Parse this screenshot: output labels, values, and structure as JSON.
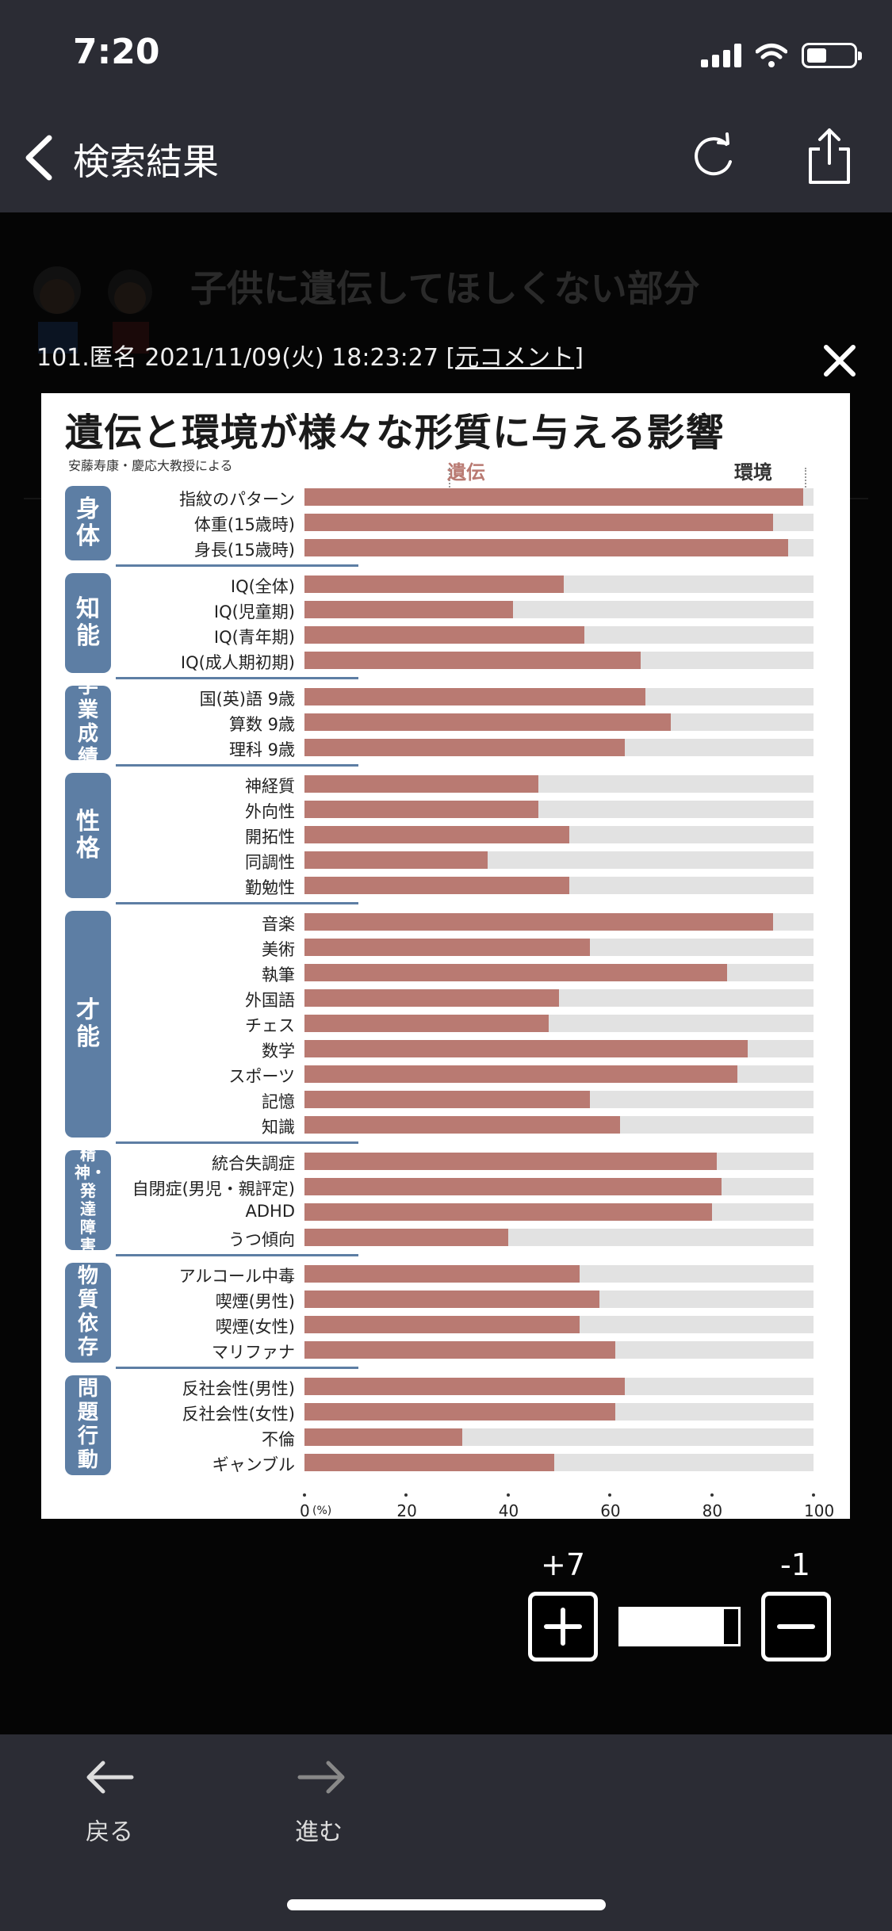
{
  "status": {
    "time": "7:20"
  },
  "nav": {
    "title": "検索結果"
  },
  "background": {
    "title": "子供に遺伝してほしくない部分"
  },
  "comment": {
    "meta": "101.匿名 2021/11/09(火) 18:23:27 ",
    "link_open": "[",
    "link": "元コメント",
    "link_close": "]"
  },
  "chart_data": {
    "type": "bar",
    "title": "遺伝と環境が様々な形質に与える影響",
    "subtitle": "安藤寿康・慶応大教授による",
    "legend": [
      "遺伝",
      "環境"
    ],
    "xlim": [
      0,
      100
    ],
    "x_ticks": [
      "0",
      "20",
      "40",
      "60",
      "80",
      "100"
    ],
    "x_unit": "(%)",
    "groups": [
      {
        "name": "身体",
        "items": [
          {
            "label": "指紋のパターン",
            "value": 98
          },
          {
            "label": "体重(15歳時)",
            "value": 92
          },
          {
            "label": "身長(15歳時)",
            "value": 95
          }
        ]
      },
      {
        "name": "知能",
        "items": [
          {
            "label": "IQ(全体)",
            "value": 51
          },
          {
            "label": "IQ(児童期)",
            "value": 41
          },
          {
            "label": "IQ(青年期)",
            "value": 55
          },
          {
            "label": "IQ(成人期初期)",
            "value": 66
          }
        ]
      },
      {
        "name": "学業成績",
        "items": [
          {
            "label": "国(英)語 9歳",
            "value": 67
          },
          {
            "label": "算数 9歳",
            "value": 72
          },
          {
            "label": "理科 9歳",
            "value": 63
          }
        ]
      },
      {
        "name": "性格",
        "items": [
          {
            "label": "神経質",
            "value": 46
          },
          {
            "label": "外向性",
            "value": 46
          },
          {
            "label": "開拓性",
            "value": 52
          },
          {
            "label": "同調性",
            "value": 36
          },
          {
            "label": "勤勉性",
            "value": 52
          }
        ]
      },
      {
        "name": "才能",
        "items": [
          {
            "label": "音楽",
            "value": 92
          },
          {
            "label": "美術",
            "value": 56
          },
          {
            "label": "執筆",
            "value": 83
          },
          {
            "label": "外国語",
            "value": 50
          },
          {
            "label": "チェス",
            "value": 48
          },
          {
            "label": "数学",
            "value": 87
          },
          {
            "label": "スポーツ",
            "value": 85
          },
          {
            "label": "記憶",
            "value": 56
          },
          {
            "label": "知識",
            "value": 62
          }
        ]
      },
      {
        "name": "精神・発達障害",
        "items": [
          {
            "label": "統合失調症",
            "value": 81
          },
          {
            "label": "自閉症(男児・親評定)",
            "value": 82
          },
          {
            "label": "ADHD",
            "value": 80
          },
          {
            "label": "うつ傾向",
            "value": 40
          }
        ]
      },
      {
        "name": "物質依存",
        "items": [
          {
            "label": "アルコール中毒",
            "value": 54
          },
          {
            "label": "喫煙(男性)",
            "value": 58
          },
          {
            "label": "喫煙(女性)",
            "value": 54
          },
          {
            "label": "マリファナ",
            "value": 61
          }
        ]
      },
      {
        "name": "問題行動",
        "items": [
          {
            "label": "反社会性(男性)",
            "value": 63
          },
          {
            "label": "反社会性(女性)",
            "value": 61
          },
          {
            "label": "不倫",
            "value": 31
          },
          {
            "label": "ギャンブル",
            "value": 49
          }
        ]
      }
    ]
  },
  "votes": {
    "plus": "+7",
    "minus": "-1",
    "ratio": 0.875
  },
  "toolbar": {
    "back": "戻る",
    "forward": "進む"
  }
}
